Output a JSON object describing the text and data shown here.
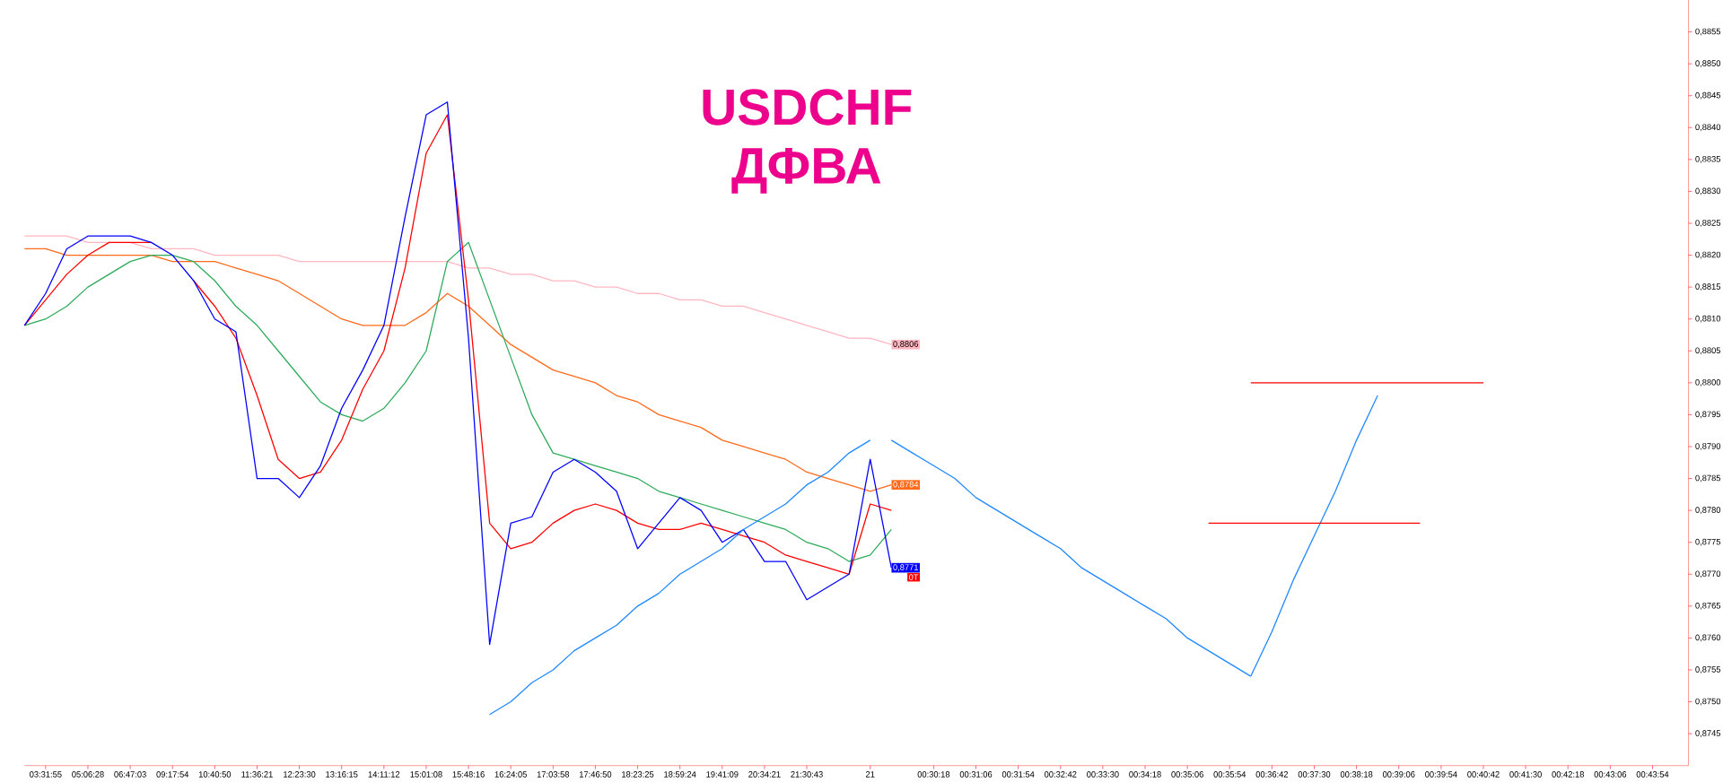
{
  "chart_data": {
    "type": "line",
    "title": "USDCHF",
    "subtitle": "ДФВА",
    "categories": [
      null,
      "03:31:55",
      null,
      "05:06:28",
      null,
      "06:47:03",
      null,
      "09:17:54",
      null,
      "10:40:50",
      null,
      "11:36:21",
      null,
      "12:23:30",
      null,
      "13:16:15",
      null,
      "14:11:12",
      null,
      "15:01:08",
      null,
      "15:48:16",
      null,
      "16:24:05",
      null,
      "17:03:58",
      null,
      "17:46:50",
      null,
      "18:23:25",
      null,
      "18:59:24",
      null,
      "19:41:09",
      null,
      "20:34:21",
      null,
      "21:30:43",
      null,
      null,
      "21",
      null,
      null,
      "00:30:18",
      null,
      "00:31:06",
      null,
      "00:31:54",
      null,
      "00:32:42",
      null,
      "00:33:30",
      null,
      "00:34:18",
      null,
      "00:35:06",
      null,
      "00:35:54",
      null,
      "00:36:42",
      null,
      "00:37:30",
      null,
      "00:38:18",
      null,
      "00:39:06",
      null,
      "00:39:54",
      null,
      "00:40:42",
      null,
      "00:41:30",
      null,
      "00:42:18",
      null,
      "00:43:06",
      null,
      "00:43:54",
      null
    ],
    "ylim": [
      0.874,
      0.886
    ],
    "yticks": [
      {
        "value": 0.8745,
        "label": "0,8745"
      },
      {
        "value": 0.875,
        "label": "0,8750"
      },
      {
        "value": 0.8755,
        "label": "0,8755"
      },
      {
        "value": 0.876,
        "label": "0,8760"
      },
      {
        "value": 0.8765,
        "label": "0,8765"
      },
      {
        "value": 0.877,
        "label": "0,8770"
      },
      {
        "value": 0.8775,
        "label": "0,8775"
      },
      {
        "value": 0.878,
        "label": "0,8780"
      },
      {
        "value": 0.8785,
        "label": "0,8785"
      },
      {
        "value": 0.879,
        "label": "0,8790"
      },
      {
        "value": 0.8795,
        "label": "0,8795"
      },
      {
        "value": 0.88,
        "label": "0,8800"
      },
      {
        "value": 0.8805,
        "label": "0,8805"
      },
      {
        "value": 0.881,
        "label": "0,8810"
      },
      {
        "value": 0.8815,
        "label": "0,8815"
      },
      {
        "value": 0.882,
        "label": "0,8820"
      },
      {
        "value": 0.8825,
        "label": "0,8825"
      },
      {
        "value": 0.883,
        "label": "0,8830"
      },
      {
        "value": 0.8835,
        "label": "0,8835"
      },
      {
        "value": 0.884,
        "label": "0,8840"
      },
      {
        "value": 0.8845,
        "label": "0,8845"
      },
      {
        "value": 0.885,
        "label": "0,8850"
      },
      {
        "value": 0.8855,
        "label": "0,8855"
      }
    ],
    "series": [
      {
        "color": "#ffb6c1",
        "values": [
          0.8823,
          0.8823,
          0.8823,
          0.8822,
          0.8822,
          0.8822,
          0.8821,
          0.8821,
          0.8821,
          0.882,
          0.882,
          0.882,
          0.882,
          0.8819,
          0.8819,
          0.8819,
          0.8819,
          0.8819,
          0.8819,
          0.8819,
          0.8819,
          0.8818,
          0.8818,
          0.8817,
          0.8817,
          0.8816,
          0.8816,
          0.8815,
          0.8815,
          0.8814,
          0.8814,
          0.8813,
          0.8813,
          0.8812,
          0.8812,
          0.8811,
          0.881,
          0.8809,
          0.8808,
          0.8807,
          0.8807,
          0.8806,
          null,
          null,
          null,
          null,
          null,
          null,
          null,
          null,
          null,
          null,
          null,
          null,
          null,
          null,
          null,
          null,
          null,
          null,
          null,
          null,
          null,
          null,
          null,
          null,
          null,
          null,
          null,
          null,
          null,
          null,
          null,
          null,
          null,
          null,
          null,
          null,
          null
        ],
        "value_labels": [
          null,
          null,
          null,
          null,
          null,
          null,
          null,
          null,
          null,
          null,
          null,
          null,
          null,
          null,
          null,
          null,
          null,
          null,
          null,
          null,
          null,
          null,
          null,
          null,
          null,
          null,
          null,
          null,
          null,
          null,
          null,
          null,
          null,
          null,
          null,
          null,
          null,
          null,
          null,
          null,
          null,
          "0,8806",
          null,
          null,
          null,
          null,
          null,
          null,
          null,
          null,
          null,
          null,
          null,
          null,
          null,
          null,
          null,
          null,
          null,
          null,
          null,
          null,
          null,
          null,
          null,
          null,
          null,
          null,
          null,
          null,
          null,
          null,
          null,
          null,
          null,
          null,
          null,
          null,
          null
        ]
      },
      {
        "color": "#ff6a1a",
        "values": [
          0.8821,
          0.8821,
          0.882,
          0.882,
          0.882,
          0.882,
          0.882,
          0.8819,
          0.8819,
          0.8819,
          0.8818,
          0.8817,
          0.8816,
          0.8814,
          0.8812,
          0.881,
          0.8809,
          0.8809,
          0.8809,
          0.8811,
          0.8814,
          0.8812,
          0.8809,
          0.8806,
          0.8804,
          0.8802,
          0.8801,
          0.88,
          0.8798,
          0.8797,
          0.8795,
          0.8794,
          0.8793,
          0.8791,
          0.879,
          0.8789,
          0.8788,
          0.8786,
          0.8785,
          0.8784,
          0.8783,
          0.8784,
          null,
          null,
          null,
          null,
          null,
          null,
          null,
          null,
          null,
          null,
          null,
          null,
          null,
          null,
          null,
          null,
          null,
          null,
          null,
          null,
          null,
          null,
          null,
          null,
          null,
          null,
          null,
          null,
          null,
          null,
          null,
          null,
          null,
          null,
          null,
          null,
          null
        ],
        "value_labels": [
          null,
          null,
          null,
          null,
          null,
          null,
          null,
          null,
          null,
          null,
          null,
          null,
          null,
          null,
          null,
          null,
          null,
          null,
          null,
          null,
          null,
          null,
          null,
          null,
          null,
          null,
          null,
          null,
          null,
          null,
          null,
          null,
          null,
          null,
          null,
          null,
          null,
          null,
          null,
          null,
          null,
          "0,8784",
          null,
          null,
          null,
          null,
          null,
          null,
          null,
          null,
          null,
          null,
          null,
          null,
          null,
          null,
          null,
          null,
          null,
          null,
          null,
          null,
          null,
          null,
          null,
          null,
          null,
          null,
          null,
          null,
          null,
          null,
          null,
          null,
          null,
          null,
          null,
          null,
          null
        ]
      },
      {
        "color": "#2eab5a",
        "values": [
          0.8809,
          0.881,
          0.8812,
          0.8815,
          0.8817,
          0.8819,
          0.882,
          0.882,
          0.8819,
          0.8816,
          0.8812,
          0.8809,
          0.8805,
          0.8801,
          0.8797,
          0.8795,
          0.8794,
          0.8796,
          0.88,
          0.8805,
          0.8819,
          0.8822,
          0.8813,
          0.8804,
          0.8795,
          0.8789,
          0.8788,
          0.8787,
          0.8786,
          0.8785,
          0.8783,
          0.8782,
          0.8781,
          0.878,
          0.8779,
          0.8778,
          0.8777,
          0.8775,
          0.8774,
          0.8772,
          0.8773,
          0.8777,
          null,
          null,
          null,
          null,
          null,
          null,
          null,
          null,
          null,
          null,
          null,
          null,
          null,
          null,
          null,
          null,
          null,
          null,
          null,
          null,
          null,
          null,
          null,
          null,
          null,
          null,
          null,
          null,
          null,
          null,
          null,
          null,
          null,
          null,
          null,
          null,
          null
        ]
      },
      {
        "color": "#ff0000",
        "values": [
          0.8809,
          0.8813,
          0.8817,
          0.882,
          0.8822,
          0.8822,
          0.8822,
          null,
          0.8816,
          0.8812,
          0.8807,
          0.8798,
          0.8788,
          0.8785,
          0.8786,
          0.8791,
          0.8799,
          0.8805,
          0.8818,
          0.8836,
          0.8842,
          0.8813,
          0.8778,
          0.8774,
          0.8775,
          0.8778,
          0.878,
          0.8781,
          0.878,
          0.8778,
          0.8777,
          0.8777,
          0.8778,
          0.8777,
          0.8776,
          0.8775,
          0.8773,
          0.8772,
          0.8771,
          0.877,
          0.8781,
          0.878,
          null,
          null,
          null,
          null,
          null,
          null,
          null,
          null,
          null,
          null,
          null,
          null,
          null,
          null,
          null,
          null,
          null,
          null,
          null,
          null,
          null,
          null,
          null,
          null,
          null,
          null,
          null,
          null,
          null,
          null,
          null,
          null,
          null,
          null,
          null,
          null,
          null
        ]
      },
      {
        "color": "#0000ff",
        "values": [
          0.8809,
          0.8814,
          0.8821,
          0.8823,
          0.8823,
          0.8823,
          0.8822,
          0.882,
          0.8816,
          0.881,
          0.8808,
          0.8785,
          0.8785,
          0.8782,
          0.8787,
          0.8796,
          0.8802,
          0.8809,
          0.8826,
          0.8842,
          0.8844,
          0.8807,
          0.8759,
          0.8778,
          0.8779,
          0.8786,
          0.8788,
          0.8786,
          0.8783,
          0.8774,
          0.8778,
          0.8782,
          0.878,
          0.8775,
          0.8777,
          0.8772,
          0.8772,
          0.8766,
          0.8768,
          0.877,
          0.8788,
          0.8771,
          null,
          null,
          null,
          null,
          null,
          null,
          null,
          null,
          null,
          null,
          null,
          null,
          null,
          null,
          null,
          null,
          null,
          null,
          null,
          null,
          null,
          null,
          null,
          null,
          null,
          null,
          null,
          null,
          null,
          null,
          null,
          null,
          null,
          null,
          null,
          null,
          null
        ],
        "value_labels": [
          null,
          null,
          null,
          null,
          null,
          null,
          null,
          null,
          null,
          null,
          null,
          null,
          null,
          null,
          null,
          null,
          null,
          null,
          null,
          null,
          null,
          null,
          null,
          null,
          null,
          null,
          null,
          null,
          null,
          null,
          null,
          null,
          null,
          null,
          null,
          null,
          null,
          null,
          null,
          null,
          null,
          "0,8771",
          null,
          null,
          null,
          null,
          null,
          null,
          null,
          null,
          null,
          null,
          null,
          null,
          null,
          null,
          null,
          null,
          null,
          null,
          null,
          null,
          null,
          null,
          null,
          null,
          null,
          null,
          null,
          null,
          null,
          null,
          null,
          null,
          null,
          null,
          null,
          null,
          null
        ]
      },
      {
        "color": "#1e88ff",
        "values": [
          null,
          null,
          null,
          null,
          null,
          null,
          null,
          null,
          null,
          null,
          null,
          null,
          null,
          null,
          null,
          null,
          null,
          null,
          null,
          null,
          null,
          null,
          0.8748,
          0.875,
          0.8753,
          0.8755,
          0.8758,
          0.876,
          0.8762,
          0.8765,
          0.8767,
          0.877,
          0.8772,
          0.8774,
          0.8777,
          0.8779,
          0.8781,
          0.8784,
          0.8786,
          0.8789,
          0.8791,
          null,
          null,
          null,
          null,
          null,
          null,
          null,
          null,
          null,
          null,
          null,
          null,
          null,
          null,
          null,
          null,
          null,
          null,
          null,
          null,
          null,
          null,
          null,
          null,
          null,
          null,
          null,
          null,
          null,
          null,
          null,
          null,
          null,
          null,
          null,
          null,
          null,
          null
        ]
      },
      {
        "color": "#1e88ff",
        "values": [
          null,
          null,
          null,
          null,
          null,
          null,
          null,
          null,
          null,
          null,
          null,
          null,
          null,
          null,
          null,
          null,
          null,
          null,
          null,
          null,
          null,
          null,
          null,
          null,
          null,
          null,
          null,
          null,
          null,
          null,
          null,
          null,
          null,
          null,
          null,
          null,
          null,
          null,
          null,
          null,
          null,
          0.8791,
          0.8789,
          0.8787,
          0.8785,
          0.8782,
          0.878,
          0.8778,
          0.8776,
          0.8774,
          0.8771,
          0.8769,
          0.8767,
          0.8765,
          0.8763,
          0.876,
          0.8758,
          0.8756,
          0.8754,
          null,
          null,
          null,
          null,
          null,
          null,
          null,
          null,
          null,
          null,
          null,
          null,
          null,
          null,
          null,
          null,
          null,
          null,
          null,
          null
        ]
      },
      {
        "color": "#1e88ff",
        "values": [
          null,
          null,
          null,
          null,
          null,
          null,
          null,
          null,
          null,
          null,
          null,
          null,
          null,
          null,
          null,
          null,
          null,
          null,
          null,
          null,
          null,
          null,
          null,
          null,
          null,
          null,
          null,
          null,
          null,
          null,
          null,
          null,
          null,
          null,
          null,
          null,
          null,
          null,
          null,
          null,
          null,
          null,
          null,
          null,
          null,
          null,
          null,
          null,
          null,
          null,
          null,
          null,
          null,
          null,
          null,
          null,
          null,
          null,
          0.8754,
          0.8761,
          0.8769,
          0.8776,
          0.8783,
          0.8791,
          0.8798,
          null,
          null,
          null,
          null,
          null,
          null,
          null,
          null,
          null,
          null,
          null,
          null,
          null,
          null
        ]
      },
      {
        "color": "#ff0000",
        "values": [
          null,
          null,
          null,
          null,
          null,
          null,
          null,
          null,
          null,
          null,
          null,
          null,
          null,
          null,
          null,
          null,
          null,
          null,
          null,
          null,
          null,
          null,
          null,
          null,
          null,
          null,
          null,
          null,
          null,
          null,
          null,
          null,
          null,
          null,
          null,
          null,
          null,
          null,
          null,
          null,
          null,
          null,
          null,
          null,
          null,
          null,
          null,
          null,
          null,
          null,
          null,
          null,
          null,
          null,
          null,
          null,
          null,
          null,
          0.88,
          0.88,
          0.88,
          0.88,
          0.88,
          0.88,
          0.88,
          0.88,
          0.88,
          0.88,
          0.88,
          0.88,
          null,
          null,
          null,
          null,
          null,
          null,
          null,
          null,
          null
        ]
      },
      {
        "color": "#ff0000",
        "values": [
          null,
          null,
          null,
          null,
          null,
          null,
          null,
          null,
          null,
          null,
          null,
          null,
          null,
          null,
          null,
          null,
          null,
          null,
          null,
          null,
          null,
          null,
          null,
          null,
          null,
          null,
          null,
          null,
          null,
          null,
          null,
          null,
          null,
          null,
          null,
          null,
          null,
          null,
          null,
          null,
          null,
          null,
          null,
          null,
          null,
          null,
          null,
          null,
          null,
          null,
          null,
          null,
          null,
          null,
          null,
          null,
          0.8778,
          0.8778,
          0.8778,
          0.8778,
          0.8778,
          0.8778,
          0.8778,
          0.8778,
          0.8778,
          0.8778,
          0.8778,
          null,
          null,
          null,
          null,
          null,
          null,
          null,
          null,
          null,
          null,
          null,
          null
        ]
      }
    ],
    "annotations": [
      "0T"
    ],
    "grid": false
  }
}
